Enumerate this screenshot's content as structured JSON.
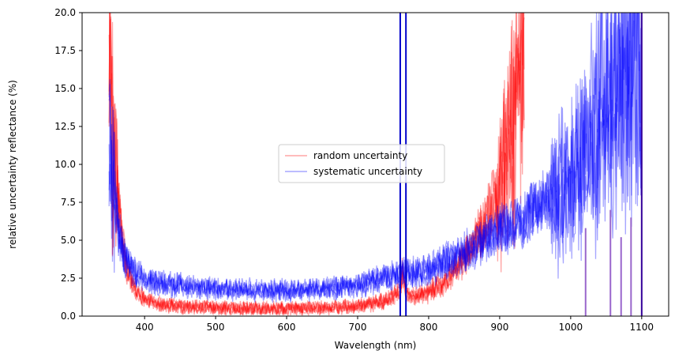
{
  "chart_data": {
    "type": "line",
    "xlabel": "Wavelength (nm)",
    "ylabel": "relative uncertainty reflectance (%)",
    "xlim": [
      312,
      1138
    ],
    "ylim": [
      0,
      20
    ],
    "xticks": [
      400,
      500,
      600,
      700,
      800,
      900,
      1000,
      1100
    ],
    "yticks": [
      0.0,
      2.5,
      5.0,
      7.5,
      10.0,
      12.5,
      15.0,
      17.5,
      20.0
    ],
    "xtick_labels": [
      "400",
      "500",
      "600",
      "700",
      "800",
      "900",
      "1000",
      "1100"
    ],
    "ytick_labels": [
      "0.0",
      "2.5",
      "5.0",
      "7.5",
      "10.0",
      "12.5",
      "15.0",
      "17.5",
      "20.0"
    ],
    "grid": false,
    "legend_position": "center",
    "series": [
      {
        "name": "random uncertainty",
        "color": "#ff0000",
        "alpha": 0.35,
        "x": [
          350,
          355,
          360,
          365,
          370,
          375,
          380,
          390,
          400,
          410,
          420,
          450,
          500,
          550,
          600,
          650,
          700,
          720,
          740,
          750,
          760,
          763,
          766,
          770,
          780,
          800,
          820,
          840,
          860,
          880,
          900,
          910,
          920,
          930,
          935
        ],
        "y": [
          16.0,
          12.0,
          9.0,
          6.5,
          4.5,
          3.2,
          2.4,
          1.6,
          1.1,
          0.9,
          0.8,
          0.65,
          0.55,
          0.5,
          0.5,
          0.55,
          0.65,
          0.8,
          1.0,
          1.3,
          1.8,
          3.0,
          1.8,
          1.4,
          1.3,
          1.6,
          2.2,
          3.2,
          4.5,
          6.2,
          8.5,
          10.5,
          13.0,
          16.0,
          20.0
        ]
      },
      {
        "name": "systematic uncertainty",
        "color": "#0000ff",
        "alpha": 0.35,
        "x": [
          350,
          355,
          360,
          365,
          370,
          380,
          390,
          400,
          420,
          450,
          500,
          550,
          600,
          650,
          700,
          720,
          740,
          760,
          780,
          800,
          820,
          840,
          860,
          880,
          900,
          920,
          940,
          960,
          980,
          1000,
          1010,
          1020,
          1030,
          1040,
          1050,
          1060,
          1070,
          1080,
          1090,
          1100
        ],
        "y": [
          12.0,
          9.0,
          7.0,
          5.2,
          4.2,
          3.2,
          2.8,
          2.5,
          2.2,
          2.0,
          1.8,
          1.7,
          1.7,
          1.8,
          2.0,
          2.3,
          2.6,
          2.8,
          2.9,
          3.1,
          3.5,
          4.0,
          4.5,
          5.0,
          5.6,
          6.0,
          6.7,
          7.5,
          8.3,
          9.0,
          9.5,
          10.5,
          11.5,
          12.5,
          13.5,
          14.5,
          15.5,
          16.5,
          17.5,
          18.0
        ]
      }
    ],
    "vertical_lines": [
      {
        "x": 760,
        "y_top": 20,
        "color": "#0000cc"
      },
      {
        "x": 768,
        "y_top": 20,
        "color": "#0000cc"
      },
      {
        "x": 1021,
        "y_top": 5.8,
        "color": "#9966cc"
      },
      {
        "x": 1056,
        "y_top": 7.0,
        "color": "#9966cc"
      },
      {
        "x": 1071,
        "y_top": 5.2,
        "color": "#9966cc"
      },
      {
        "x": 1085,
        "y_top": 6.5,
        "color": "#9966cc"
      },
      {
        "x": 1100,
        "y_top": 20,
        "color": "#330099"
      }
    ]
  }
}
